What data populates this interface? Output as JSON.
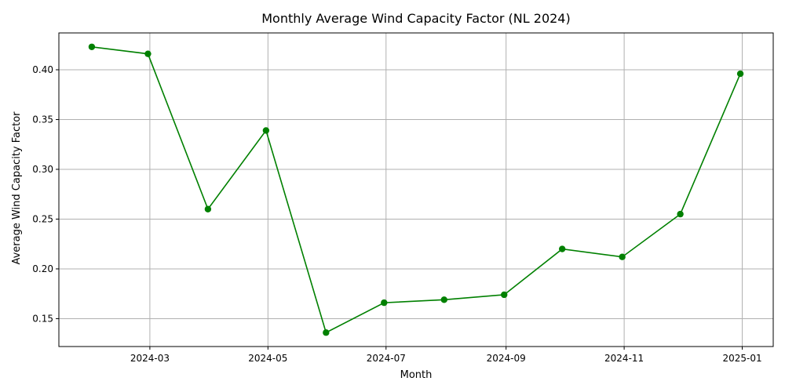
{
  "chart_data": {
    "type": "line",
    "title": "Monthly Average Wind Capacity Factor (NL 2024)",
    "xlabel": "Month",
    "ylabel": "Average Wind Capacity Factor",
    "x": [
      "2024-01-31",
      "2024-02-29",
      "2024-03-31",
      "2024-04-30",
      "2024-05-31",
      "2024-06-30",
      "2024-07-31",
      "2024-08-31",
      "2024-09-30",
      "2024-10-31",
      "2024-11-30",
      "2024-12-31"
    ],
    "series": [
      {
        "values": [
          0.423,
          0.416,
          0.26,
          0.339,
          0.136,
          0.166,
          0.169,
          0.174,
          0.22,
          0.212,
          0.255,
          0.396
        ],
        "color": "#008000",
        "marker": "circle"
      }
    ],
    "xlim": [
      "2024-01-14",
      "2025-01-17"
    ],
    "ylim": [
      0.122,
      0.437
    ],
    "xticks": [
      "2024-03-01",
      "2024-05-01",
      "2024-07-01",
      "2024-09-01",
      "2024-11-01",
      "2025-01-01"
    ],
    "xtick_labels": [
      "2024-03",
      "2024-05",
      "2024-07",
      "2024-09",
      "2024-11",
      "2025-01"
    ],
    "yticks": [
      0.15,
      0.2,
      0.25,
      0.3,
      0.35,
      0.4
    ],
    "ytick_labels": [
      "0.15",
      "0.20",
      "0.25",
      "0.30",
      "0.35",
      "0.40"
    ],
    "grid": true
  }
}
